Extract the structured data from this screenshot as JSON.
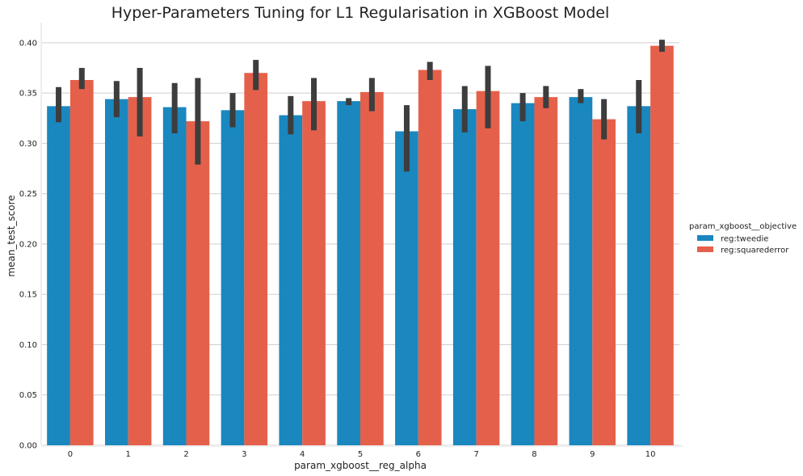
{
  "chart_data": {
    "type": "bar",
    "title": "Hyper-Parameters Tuning for L1 Regularisation in XGBoost Model",
    "xlabel": "param_xgboost__reg_alpha",
    "ylabel": "mean_test_score",
    "categories": [
      "0",
      "1",
      "2",
      "3",
      "4",
      "5",
      "6",
      "7",
      "8",
      "9",
      "10"
    ],
    "ylim": [
      0,
      0.42
    ],
    "yticks": [
      "0.00",
      "0.05",
      "0.10",
      "0.15",
      "0.20",
      "0.25",
      "0.30",
      "0.35",
      "0.40"
    ],
    "grid": "horizontal",
    "legend": {
      "title": "param_xgboost__objective",
      "placement": "right"
    },
    "series": [
      {
        "name": "reg:tweedie",
        "color": "#1a87bf",
        "values": [
          0.337,
          0.344,
          0.336,
          0.333,
          0.328,
          0.342,
          0.312,
          0.334,
          0.34,
          0.346,
          0.337
        ],
        "ci_low": [
          0.321,
          0.326,
          0.31,
          0.316,
          0.309,
          0.338,
          0.272,
          0.311,
          0.322,
          0.34,
          0.31
        ],
        "ci_high": [
          0.356,
          0.362,
          0.36,
          0.35,
          0.347,
          0.345,
          0.338,
          0.357,
          0.35,
          0.354,
          0.363
        ]
      },
      {
        "name": "reg:squarederror",
        "color": "#e5604a",
        "values": [
          0.363,
          0.346,
          0.322,
          0.37,
          0.342,
          0.351,
          0.373,
          0.352,
          0.346,
          0.324,
          0.397
        ],
        "ci_low": [
          0.354,
          0.307,
          0.279,
          0.353,
          0.313,
          0.332,
          0.363,
          0.315,
          0.335,
          0.304,
          0.391
        ],
        "ci_high": [
          0.375,
          0.375,
          0.365,
          0.383,
          0.365,
          0.365,
          0.381,
          0.377,
          0.357,
          0.344,
          0.403
        ]
      }
    ],
    "errorbar_color": "#3d3d3d",
    "grid_color": "#cfcfcf"
  }
}
